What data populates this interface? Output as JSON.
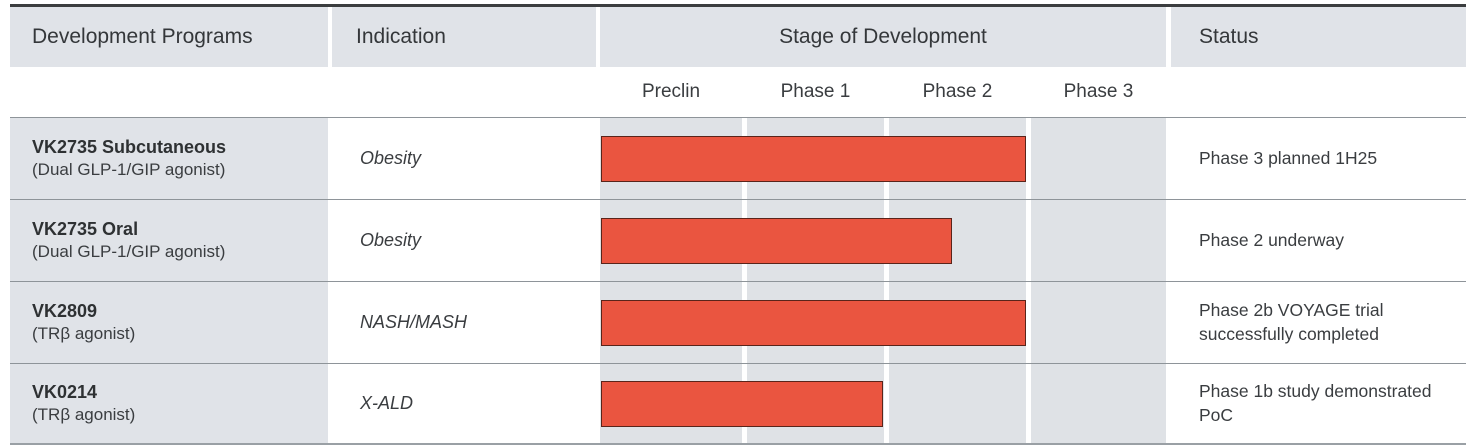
{
  "colors": {
    "bar_fill": "#ea5540",
    "bar_border": "#5a241a",
    "header_bg": "#e0e3e8",
    "stage_column_bg": "#dfe2e6",
    "row_line": "#8e9499",
    "top_border": "#3b3d3f"
  },
  "table": {
    "headers": {
      "programs": "Development Programs",
      "indication": "Indication",
      "stage": "Stage of Development",
      "status": "Status"
    },
    "stages": [
      "Preclin",
      "Phase 1",
      "Phase 2",
      "Phase 3"
    ],
    "rows": [
      {
        "program": "VK2735 Subcutaneous",
        "program_detail": "(Dual GLP-1/GIP agonist)",
        "indication": "Obesity",
        "stage_progress_pct": 75.1,
        "status": "Phase 3 planned 1H25"
      },
      {
        "program": "VK2735 Oral",
        "program_detail": "(Dual GLP-1/GIP agonist)",
        "indication": "Obesity",
        "stage_progress_pct": 62.0,
        "status": "Phase 2 underway"
      },
      {
        "program": "VK2809",
        "program_detail": "(TRβ agonist)",
        "indication": "NASH/MASH",
        "stage_progress_pct": 75.1,
        "status": "Phase 2b VOYAGE trial successfully completed"
      },
      {
        "program": "VK0214",
        "program_detail": "(TRβ agonist)",
        "indication": "X-ALD",
        "stage_progress_pct": 49.8,
        "status": "Phase 1b study demonstrated PoC"
      }
    ]
  },
  "chart_data": {
    "type": "bar",
    "orientation": "horizontal",
    "title": "Stage of Development",
    "categories": [
      "VK2735 Subcutaneous",
      "VK2735 Oral",
      "VK2809",
      "VK0214"
    ],
    "stage_axis_labels": [
      "Preclin",
      "Phase 1",
      "Phase 2",
      "Phase 3"
    ],
    "xlim_stage_units": [
      0,
      4
    ],
    "values_stage_units": [
      3.0,
      2.5,
      3.0,
      2.0
    ],
    "bar_color": "#ea5540",
    "grid": false,
    "legend": false
  }
}
